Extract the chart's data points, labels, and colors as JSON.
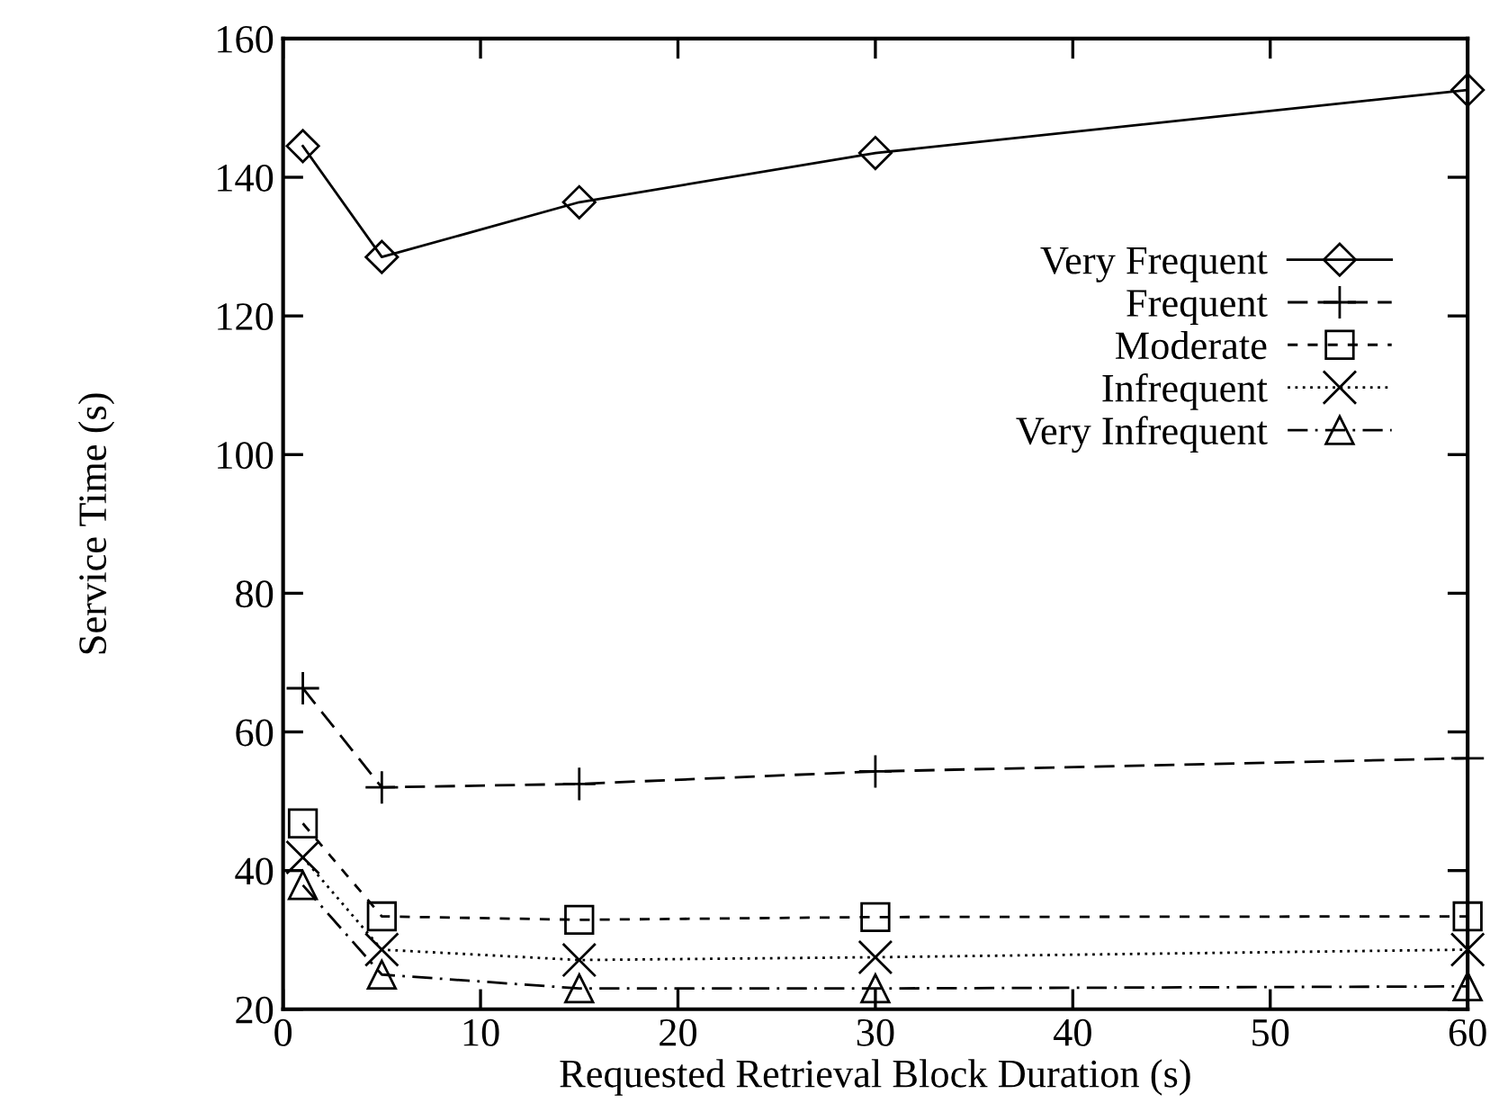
{
  "chart_data": {
    "type": "line",
    "xlabel": "Requested Retrieval Block Duration (s)",
    "ylabel": "Service Time (s)",
    "x": [
      1,
      5,
      15,
      30,
      60
    ],
    "series": [
      {
        "name": "Very Frequent",
        "color": "#000000",
        "marker": "diamond",
        "line_style": "solid",
        "values": [
          144.5,
          128.5,
          136.4,
          143.5,
          152.6
        ]
      },
      {
        "name": "Frequent",
        "color": "#000000",
        "marker": "plus",
        "line_style": "dashed",
        "values": [
          66.3,
          52.0,
          52.5,
          54.3,
          56.2
        ]
      },
      {
        "name": "Moderate",
        "color": "#000000",
        "marker": "square",
        "line_style": "short dashed",
        "values": [
          46.8,
          33.4,
          32.9,
          33.3,
          33.4
        ]
      },
      {
        "name": "Infrequent",
        "color": "#000000",
        "marker": "cross",
        "line_style": "dotted",
        "values": [
          41.9,
          28.6,
          27.1,
          27.5,
          28.6
        ]
      },
      {
        "name": "Very Infrequent",
        "color": "#000000",
        "marker": "triangle",
        "line_style": "dashdot",
        "values": [
          37.9,
          25.0,
          23.0,
          23.0,
          23.3
        ]
      }
    ],
    "xlim": [
      0,
      60
    ],
    "xticks": [
      0,
      10,
      20,
      30,
      40,
      50,
      60
    ],
    "ylim": [
      20,
      160
    ],
    "yticks": [
      20,
      40,
      60,
      80,
      100,
      120,
      140,
      160
    ],
    "grid": false,
    "legend": "right"
  }
}
